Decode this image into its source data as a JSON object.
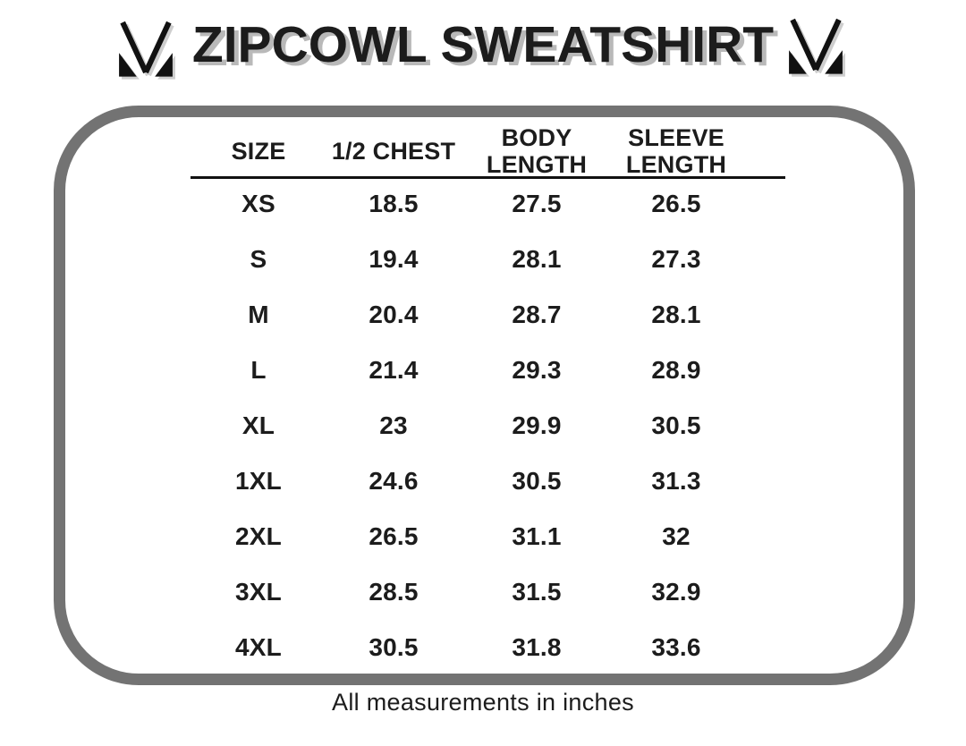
{
  "header": {
    "title": "ZIPCOWL SWEATSHIRT",
    "left_logo": "brand-m-logo",
    "right_logo": "brand-m-logo"
  },
  "chart_data": {
    "type": "table",
    "columns": [
      "SIZE",
      "1/2 CHEST",
      "BODY LENGTH",
      "SLEEVE LENGTH"
    ],
    "rows": [
      [
        "XS",
        "18.5",
        "27.5",
        "26.5"
      ],
      [
        "S",
        "19.4",
        "28.1",
        "27.3"
      ],
      [
        "M",
        "20.4",
        "28.7",
        "28.1"
      ],
      [
        "L",
        "21.4",
        "29.3",
        "28.9"
      ],
      [
        "XL",
        "23",
        "29.9",
        "30.5"
      ],
      [
        "1XL",
        "24.6",
        "30.5",
        "31.3"
      ],
      [
        "2XL",
        "26.5",
        "31.1",
        "32"
      ],
      [
        "3XL",
        "28.5",
        "31.5",
        "32.9"
      ],
      [
        "4XL",
        "30.5",
        "31.8",
        "33.6"
      ]
    ],
    "units": "inches"
  },
  "footer": {
    "note": "All measurements in inches"
  },
  "colors": {
    "text": "#1c1c1c",
    "border_gray": "#737373",
    "title_shadow": "#b9b9b9",
    "background": "#ffffff",
    "logo_black": "#111111"
  }
}
